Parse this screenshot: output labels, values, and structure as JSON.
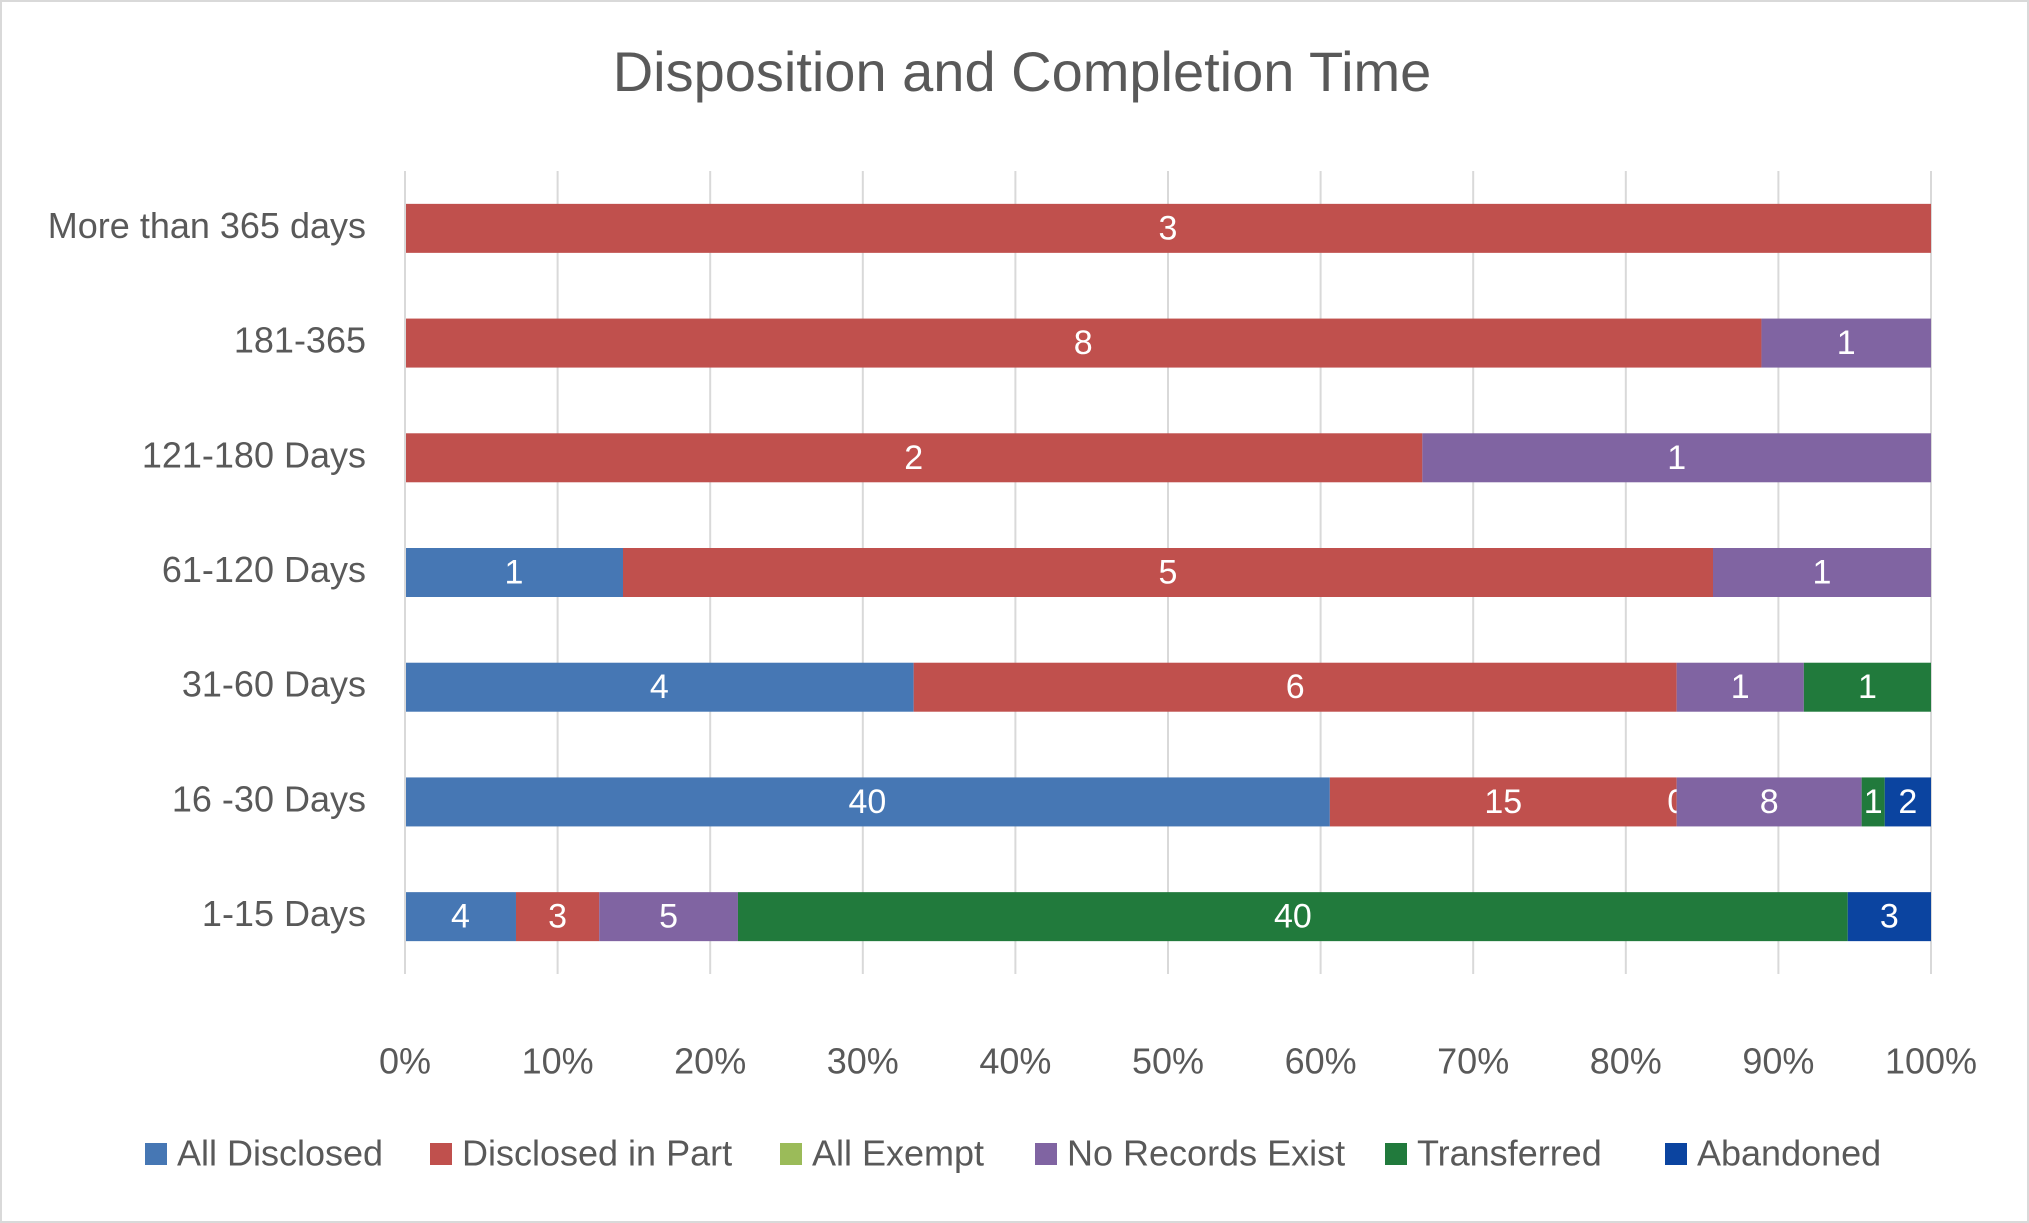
{
  "chart_data": {
    "type": "bar",
    "orientation": "horizontal",
    "stacked": "percent",
    "title": "Disposition and  Completion Time",
    "categories": [
      "1-15 Days",
      "16 -30 Days",
      "31-60 Days",
      "61-120 Days",
      "121-180 Days",
      "181-365",
      "More than 365 days"
    ],
    "series": [
      {
        "name": "All Disclosed",
        "color": "#4677b4",
        "values": [
          4,
          40,
          4,
          1,
          null,
          null,
          null
        ]
      },
      {
        "name": "Disclosed in Part",
        "color": "#c0504d",
        "values": [
          3,
          15,
          6,
          5,
          2,
          8,
          3
        ]
      },
      {
        "name": "All Exempt",
        "color": "#9bbb59",
        "values": [
          null,
          0,
          null,
          null,
          null,
          null,
          null
        ]
      },
      {
        "name": "No Records Exist",
        "color": "#8064a2",
        "values": [
          5,
          8,
          1,
          1,
          1,
          1,
          null
        ]
      },
      {
        "name": "Transferred",
        "color": "#217a3c",
        "values": [
          40,
          1,
          1,
          null,
          null,
          null,
          null
        ]
      },
      {
        "name": "Abandoned",
        "color": "#0b44a0",
        "values": [
          3,
          2,
          null,
          null,
          null,
          null,
          null
        ]
      }
    ],
    "xlim": [
      0,
      100
    ],
    "xticks": [
      {
        "value": 0,
        "label": "0%"
      },
      {
        "value": 10,
        "label": "10%"
      },
      {
        "value": 20,
        "label": "20%"
      },
      {
        "value": 30,
        "label": "30%"
      },
      {
        "value": 40,
        "label": "40%"
      },
      {
        "value": 50,
        "label": "50%"
      },
      {
        "value": 60,
        "label": "60%"
      },
      {
        "value": 70,
        "label": "70%"
      },
      {
        "value": 80,
        "label": "80%"
      },
      {
        "value": 90,
        "label": "90%"
      },
      {
        "value": 100,
        "label": "100%"
      }
    ],
    "grid": true,
    "legend": "bottom",
    "data_labels": true
  }
}
